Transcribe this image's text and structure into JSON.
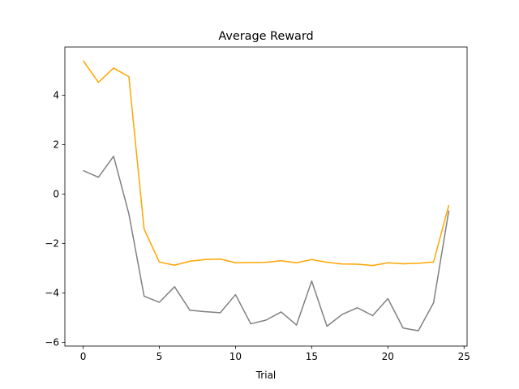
{
  "chart_data": {
    "type": "line",
    "title": "Average Reward",
    "xlabel": "Trial",
    "ylabel": "",
    "xlim": [
      -1.2,
      25.2
    ],
    "ylim": [
      -6.15,
      5.95
    ],
    "xticks": [
      0,
      5,
      10,
      15,
      20,
      25
    ],
    "yticks": [
      -6,
      -4,
      -2,
      0,
      2,
      4
    ],
    "grid": false,
    "legend": "none",
    "x": [
      0,
      1,
      2,
      3,
      4,
      5,
      6,
      7,
      8,
      9,
      10,
      11,
      12,
      13,
      14,
      15,
      16,
      17,
      18,
      19,
      20,
      21,
      22,
      23,
      24
    ],
    "series": [
      {
        "color": "#ffa500",
        "values": [
          5.4,
          4.52,
          5.1,
          4.75,
          -1.42,
          -2.75,
          -2.88,
          -2.72,
          -2.65,
          -2.63,
          -2.78,
          -2.77,
          -2.76,
          -2.7,
          -2.78,
          -2.65,
          -2.76,
          -2.83,
          -2.84,
          -2.89,
          -2.78,
          -2.82,
          -2.8,
          -2.75,
          -0.45
        ]
      },
      {
        "color": "#808080",
        "values": [
          0.95,
          0.68,
          1.53,
          -0.8,
          -4.13,
          -4.38,
          -3.75,
          -4.7,
          -4.76,
          -4.8,
          -4.07,
          -5.25,
          -5.1,
          -4.77,
          -5.3,
          -3.52,
          -5.35,
          -4.87,
          -4.6,
          -4.92,
          -4.23,
          -5.42,
          -5.53,
          -4.4,
          -0.67
        ]
      }
    ]
  }
}
